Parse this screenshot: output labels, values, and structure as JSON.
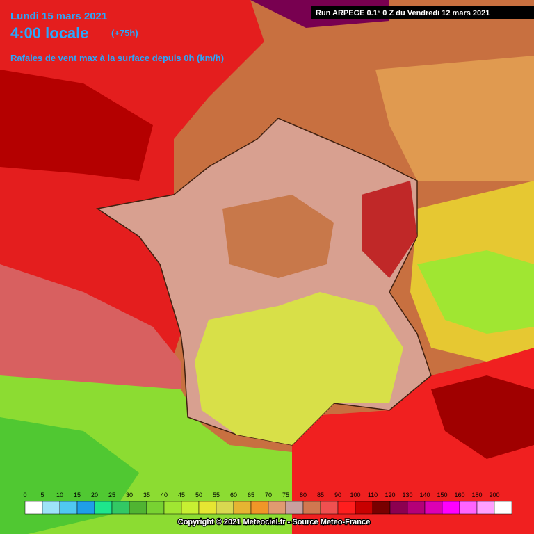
{
  "header": {
    "date": "Lundi 15 mars 2021",
    "time": "4:00 locale",
    "lead": "(+75h)",
    "parameter": "Rafales de vent max à la surface depuis 0h (km/h)",
    "run": "Run ARPEGE 0.1° 0 Z du Vendredi 12 mars 2021"
  },
  "legend": {
    "ticks": [
      0,
      5,
      10,
      15,
      20,
      25,
      30,
      35,
      40,
      45,
      50,
      55,
      60,
      65,
      70,
      75,
      80,
      85,
      90,
      100,
      110,
      120,
      130,
      140,
      150,
      160,
      180,
      200
    ],
    "colors": [
      "#ffffff",
      "#9ee3f8",
      "#50c8f0",
      "#1f9ee8",
      "#1ee68c",
      "#32c864",
      "#50b432",
      "#78d232",
      "#a0e632",
      "#c8f032",
      "#e6e632",
      "#d8d850",
      "#e6b432",
      "#f09628",
      "#e09a70",
      "#c8a0a0",
      "#d07850",
      "#f05050",
      "#ff1e1e",
      "#c80000",
      "#780000",
      "#8c0050",
      "#b40078",
      "#dc00b4",
      "#ff00ff",
      "#ff64ff",
      "#ffa0ff",
      "#ffffff"
    ]
  },
  "footer": {
    "copyright": "Copyright © 2021 Meteociel.fr - Source Meteo-France"
  }
}
